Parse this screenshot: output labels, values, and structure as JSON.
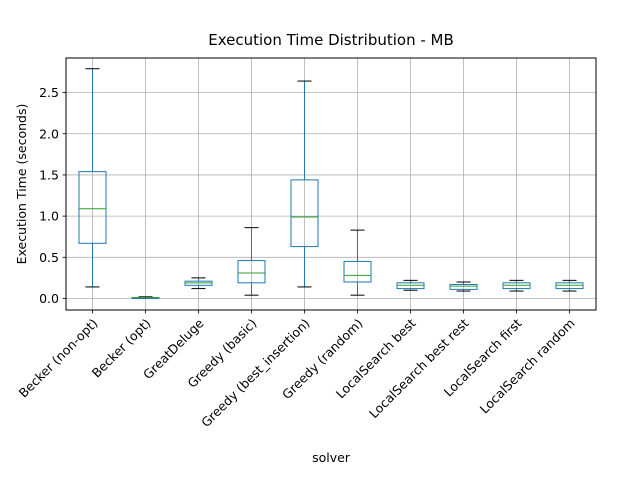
{
  "chart_data": {
    "type": "box",
    "title": "Execution Time Distribution - MB",
    "xlabel": "solver",
    "ylabel": "Execution Time (seconds)",
    "ylim": [
      -0.14,
      2.92
    ],
    "yticks": [
      0.0,
      0.5,
      1.0,
      1.5,
      2.0,
      2.5
    ],
    "ytick_labels": [
      "0.0",
      "0.5",
      "1.0",
      "1.5",
      "2.0",
      "2.5"
    ],
    "grid": true,
    "colors": {
      "box": "#1f77b4",
      "median": "#2ca02c",
      "whisker_cap": "#000000",
      "grid": "#b0b0b0"
    },
    "categories": [
      "Becker (non-opt)",
      "Becker (opt)",
      "GreatDeluge",
      "Greedy (basic)",
      "Greedy (best_insertion)",
      "Greedy (random)",
      "LocalSearch best",
      "LocalSearch best rest",
      "LocalSearch first",
      "LocalSearch random"
    ],
    "boxes": [
      {
        "min": 0.14,
        "q1": 0.67,
        "median": 1.09,
        "q3": 1.54,
        "max": 2.79
      },
      {
        "min": 0.0,
        "q1": 0.0,
        "median": 0.01,
        "q3": 0.01,
        "max": 0.02
      },
      {
        "min": 0.12,
        "q1": 0.16,
        "median": 0.19,
        "q3": 0.21,
        "max": 0.25
      },
      {
        "min": 0.04,
        "q1": 0.19,
        "median": 0.31,
        "q3": 0.46,
        "max": 0.86
      },
      {
        "min": 0.14,
        "q1": 0.63,
        "median": 0.99,
        "q3": 1.44,
        "max": 2.64
      },
      {
        "min": 0.04,
        "q1": 0.2,
        "median": 0.28,
        "q3": 0.45,
        "max": 0.83
      },
      {
        "min": 0.1,
        "q1": 0.12,
        "median": 0.16,
        "q3": 0.19,
        "max": 0.22
      },
      {
        "min": 0.09,
        "q1": 0.11,
        "median": 0.15,
        "q3": 0.17,
        "max": 0.2
      },
      {
        "min": 0.09,
        "q1": 0.12,
        "median": 0.16,
        "q3": 0.19,
        "max": 0.22
      },
      {
        "min": 0.09,
        "q1": 0.12,
        "median": 0.16,
        "q3": 0.19,
        "max": 0.22
      }
    ]
  }
}
